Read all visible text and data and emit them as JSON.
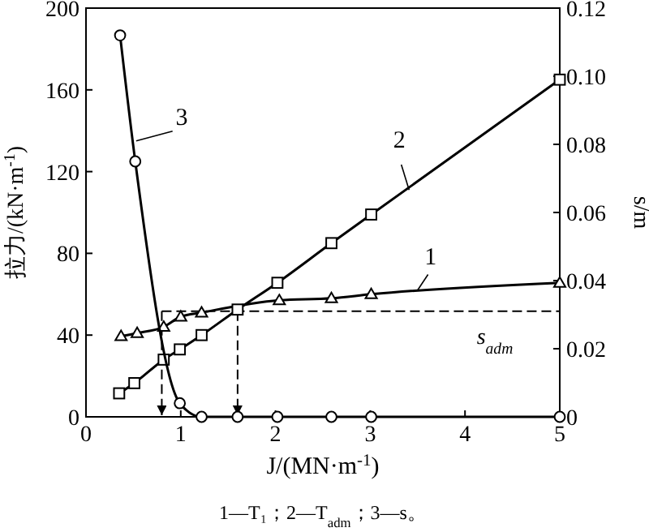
{
  "chart_data": {
    "type": "line",
    "xlabel": "J/(MN·m$^{-1}$)",
    "ylabel": "拉力/(kN·m$^{-1}$)",
    "y2label": "s/m",
    "xlim": [
      0,
      5
    ],
    "xticks": [
      0,
      1,
      2,
      3,
      4,
      5
    ],
    "ylim": [
      0,
      200
    ],
    "yticks": [
      0,
      40,
      80,
      120,
      160,
      200
    ],
    "y2lim": [
      0,
      0.12
    ],
    "y2ticks": [
      0,
      0.02,
      0.04,
      0.06,
      {
        "value": 0.08,
        "label": "0.08"
      },
      {
        "value": 0.1,
        "label": "0.10"
      },
      {
        "value": 0.12,
        "label": "0.12"
      }
    ],
    "line_style": "solid",
    "grid": false,
    "series": [
      {
        "color": "#000000",
        "marker": "triangle",
        "x": [
          0.37,
          0.54,
          0.82,
          1.0,
          1.22,
          2.04,
          2.59,
          3.01,
          5
        ],
        "values": [
          39.5,
          41,
          44,
          49,
          51,
          57,
          58,
          60,
          65.6
        ]
      },
      {
        "color": "#000000",
        "marker": "square",
        "x": [
          0.35,
          0.51,
          0.82,
          0.99,
          1.22,
          1.6,
          2.02,
          2.59,
          3.01,
          5
        ],
        "values": [
          11.5,
          16.5,
          28,
          33,
          40,
          52.5,
          65.6,
          85,
          99,
          165
        ]
      },
      {
        "color": "#000000",
        "marker": "circle",
        "axis": "y2",
        "x": [
          0.36,
          0.52,
          0.99,
          1.22,
          1.6,
          2.02,
          2.59,
          3.01,
          5
        ],
        "values": [
          0.112,
          0.075,
          0.004,
          0,
          0,
          0,
          0,
          0,
          0
        ]
      }
    ],
    "ref_lines": [
      {
        "axis": "y2",
        "value": 0.031,
        "label": "s$_{adm}$",
        "line_style": "dashed",
        "color": "#000000"
      },
      {
        "axis": "x",
        "value": 0.8,
        "line_style": "dashed",
        "color": "#000000"
      },
      {
        "axis": "x",
        "value": 1.6,
        "line_style": "dashed",
        "color": "#000000"
      }
    ],
    "annotations": [
      {
        "text": "1",
        "x": 3.5,
        "y": 62
      },
      {
        "text": "2",
        "x": 3.41,
        "y": 111
      },
      {
        "text": "3",
        "x": 0.53,
        "y": 135
      },
      "1—T₁；2—T$_{adm}$；3—s。"
    ]
  }
}
